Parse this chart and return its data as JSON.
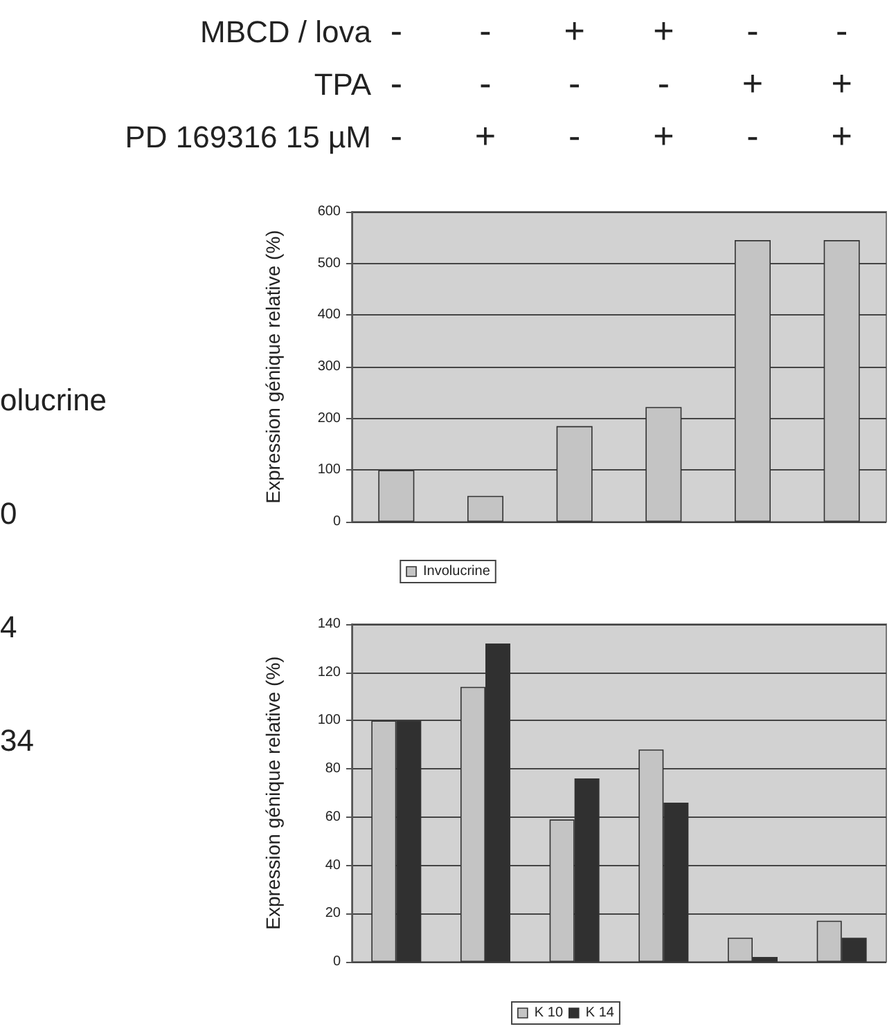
{
  "chart_data": [
    {
      "type": "bar",
      "ylabel": "Expression génique relative (%)",
      "categories": [
        "-\n-\n-",
        "-\n-\n+",
        "+\n-\n-",
        "+\n-\n+",
        "-\n+\n-",
        "-\n+\n+"
      ],
      "series": [
        {
          "name": "Involucrine",
          "color": "#c4c4c4",
          "values": [
            100,
            50,
            185,
            222,
            545,
            545
          ]
        }
      ],
      "ylim": [
        0,
        600
      ],
      "yticks": [
        0,
        100,
        200,
        300,
        400,
        500,
        600
      ],
      "grid": "y",
      "legend": "bottom",
      "annotations": [
        "MBCD / lova",
        "TPA",
        "PD 169316 15 µM",
        "olucrine",
        "0",
        "4",
        "34"
      ]
    },
    {
      "type": "bar",
      "ylabel": "Expression génique relative (%)",
      "categories": [
        null,
        null,
        null,
        null,
        null,
        null
      ],
      "series": [
        {
          "name": "K 10",
          "color": "#c4c4c4",
          "values": [
            100,
            114,
            59,
            88,
            10,
            17
          ]
        },
        {
          "name": "K 14",
          "color": "#303030",
          "values": [
            100,
            132,
            76,
            66,
            2,
            10
          ]
        }
      ],
      "ylim": [
        0,
        140
      ],
      "yticks": [
        0,
        20,
        40,
        60,
        80,
        100,
        120,
        140
      ],
      "grid": "y",
      "legend": "bottom"
    }
  ]
}
